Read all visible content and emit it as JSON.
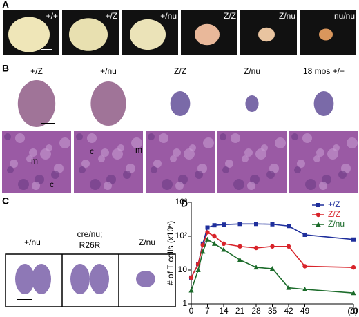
{
  "panels": {
    "a": {
      "label": "A",
      "genotypes": [
        "+/+",
        "+/Z",
        "+/nu",
        "Z/Z",
        "Z/nu",
        "nu/nu"
      ]
    },
    "b": {
      "label": "B",
      "genotypes": [
        "+/Z",
        "+/nu",
        "Z/Z",
        "Z/nu",
        "18 mos +/+"
      ],
      "regions": [
        "m",
        "c",
        "c",
        "m"
      ]
    },
    "c": {
      "label": "C",
      "genotypes": [
        "+/nu",
        "cre/nu;",
        "R26R",
        "Z/nu"
      ]
    }
  },
  "chart_data": {
    "type": "line",
    "panel_label": "D",
    "x_label": "(d)",
    "y_label": "# of T cells (x10⁶)",
    "x": [
      0,
      3,
      5,
      7,
      10,
      14,
      21,
      28,
      35,
      42,
      49,
      70
    ],
    "xlim": [
      0,
      70
    ],
    "xticks": [
      0,
      7,
      14,
      21,
      28,
      35,
      42,
      49,
      70
    ],
    "ylim": [
      1,
      1000
    ],
    "log_y": true,
    "yticks": [
      1,
      10,
      {
        "value": 100,
        "label": "10²"
      },
      {
        "value": 1000,
        "label": "10³"
      }
    ],
    "legend": "upper right",
    "series": [
      {
        "name": "+/Z",
        "color": "#1f2f9c",
        "marker": "square",
        "values": [
          6,
          15,
          60,
          180,
          210,
          220,
          230,
          230,
          225,
          200,
          110,
          80
        ]
      },
      {
        "name": "Z/Z",
        "color": "#d8232a",
        "marker": "circle",
        "values": [
          6,
          15,
          55,
          130,
          100,
          60,
          50,
          45,
          50,
          50,
          13,
          12
        ]
      },
      {
        "name": "Z/nu",
        "color": "#1b6b2a",
        "marker": "triangle",
        "values": [
          2.5,
          10,
          35,
          80,
          60,
          40,
          20,
          12,
          11,
          3,
          2.7,
          2.1
        ]
      }
    ]
  }
}
